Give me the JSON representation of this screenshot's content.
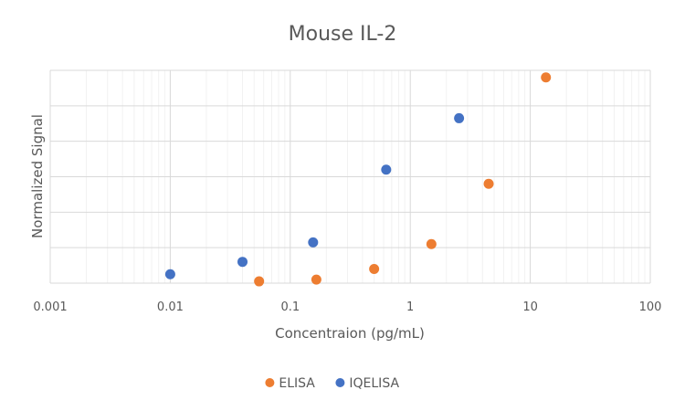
{
  "chart_data": {
    "type": "scatter",
    "title": "Mouse IL-2",
    "xlabel": "Concentraion (pg/mL)",
    "ylabel": "Normalized Signal",
    "x_scale": "log",
    "xlim": [
      0.001,
      100
    ],
    "x_ticks": [
      "0.001",
      "0.01",
      "0.1",
      "1",
      "10",
      "100"
    ],
    "ylim": [
      0,
      6
    ],
    "y_tick_labels_shown": false,
    "grid": true,
    "legend_position": "bottom",
    "series": [
      {
        "name": "ELISA",
        "color": "#ED7D31",
        "points": [
          {
            "x": 0.055,
            "y": 0.05
          },
          {
            "x": 0.165,
            "y": 0.1
          },
          {
            "x": 0.5,
            "y": 0.4
          },
          {
            "x": 1.5,
            "y": 1.1
          },
          {
            "x": 4.5,
            "y": 2.8
          },
          {
            "x": 13.5,
            "y": 5.8
          }
        ]
      },
      {
        "name": "IQELISA",
        "color": "#4472C4",
        "points": [
          {
            "x": 0.01,
            "y": 0.25
          },
          {
            "x": 0.04,
            "y": 0.6
          },
          {
            "x": 0.155,
            "y": 1.15
          },
          {
            "x": 0.63,
            "y": 3.2
          },
          {
            "x": 2.55,
            "y": 4.65
          }
        ]
      }
    ]
  }
}
